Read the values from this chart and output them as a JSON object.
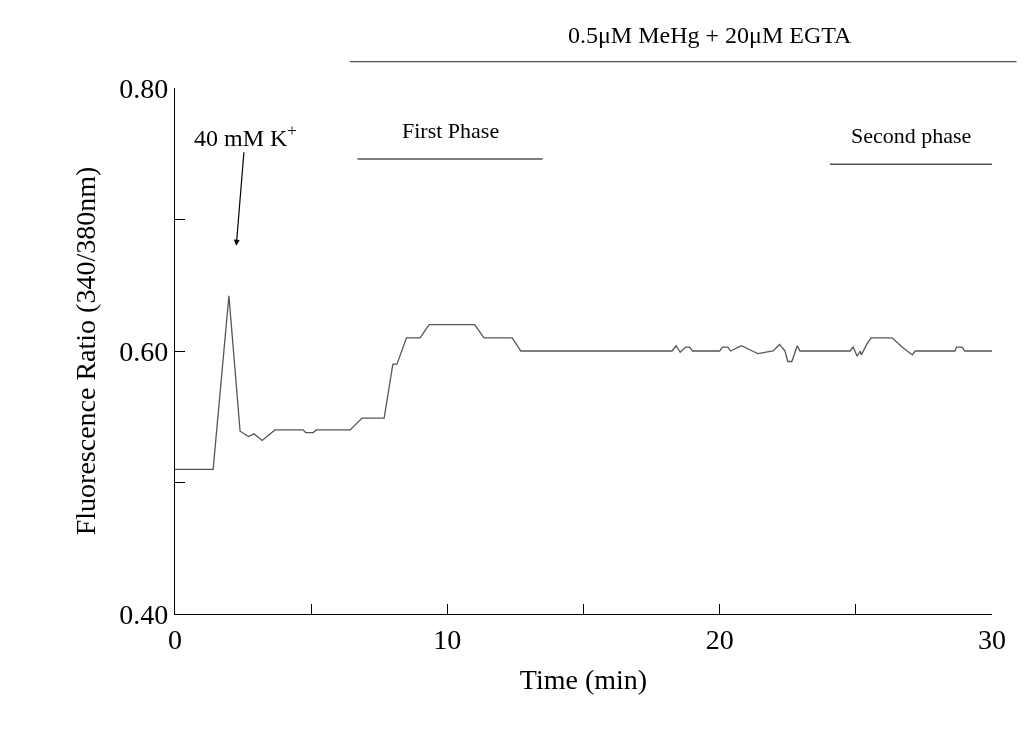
{
  "chart_data": {
    "type": "line",
    "xlabel": "Time (min)",
    "ylabel": "Fluorescence Ratio (340/380nm)",
    "series": [
      {
        "color": "#555555",
        "x": [
          0,
          0.3,
          1.4,
          1.98,
          2.39,
          2.7,
          2.9,
          3.2,
          3.67,
          4.7,
          4.8,
          5.07,
          5.2,
          6.43,
          6.87,
          7.68,
          8.0,
          8.15,
          8.5,
          9.0,
          9.33,
          11.0,
          11.35,
          12.38,
          12.7,
          18.25,
          18.4,
          18.55,
          18.75,
          18.9,
          19.0,
          20.0,
          20.1,
          20.3,
          20.4,
          20.8,
          21.2,
          21.4,
          21.96,
          22.2,
          22.4,
          22.5,
          22.65,
          22.85,
          22.95,
          24.79,
          24.9,
          25.05,
          25.16,
          25.2,
          25.4,
          25.56,
          26.33,
          26.7,
          27.07,
          27.18,
          28.64,
          28.7,
          28.9,
          29.0,
          30.0
        ],
        "values": [
          0.51,
          0.51,
          0.51,
          0.642,
          0.539,
          0.535,
          0.537,
          0.532,
          0.54,
          0.54,
          0.538,
          0.538,
          0.54,
          0.54,
          0.549,
          0.549,
          0.59,
          0.59,
          0.61,
          0.61,
          0.62,
          0.62,
          0.61,
          0.61,
          0.6,
          0.6,
          0.604,
          0.599,
          0.603,
          0.603,
          0.6,
          0.6,
          0.603,
          0.603,
          0.6,
          0.604,
          0.6,
          0.598,
          0.6,
          0.605,
          0.6,
          0.592,
          0.592,
          0.604,
          0.6,
          0.6,
          0.603,
          0.596,
          0.6,
          0.597,
          0.605,
          0.61,
          0.61,
          0.603,
          0.597,
          0.6,
          0.6,
          0.603,
          0.603,
          0.6,
          0.6
        ]
      },
      {
        "name": "First Phase",
        "color": "#555555",
        "x": [
          6.7,
          13.5
        ],
        "values": [
          0.746,
          0.746
        ]
      },
      {
        "name": "Second phase",
        "color": "#555555",
        "x": [
          24.05,
          30.0
        ],
        "values": [
          0.742,
          0.742
        ]
      }
    ],
    "xlim": [
      0,
      30
    ],
    "xticks": [
      0,
      {
        "value": 5,
        "label": null
      },
      10,
      {
        "value": 15,
        "label": null
      },
      20,
      {
        "value": 25,
        "label": null
      },
      30
    ],
    "ylim": [
      0.4,
      0.8
    ],
    "yticks": [
      {
        "value": 0.4,
        "label": "0.40"
      },
      {
        "value": 0.5,
        "label": null
      },
      {
        "value": 0.6,
        "label": "0.60"
      },
      {
        "value": 0.7,
        "label": null
      },
      {
        "value": 0.8,
        "label": "0.80"
      }
    ],
    "annotations": [
      "40 mM K$^{+}$",
      "0.5μM MeHg + 20μM EGTA"
    ],
    "legend": false,
    "marker": "none",
    "line_style": "solid"
  }
}
